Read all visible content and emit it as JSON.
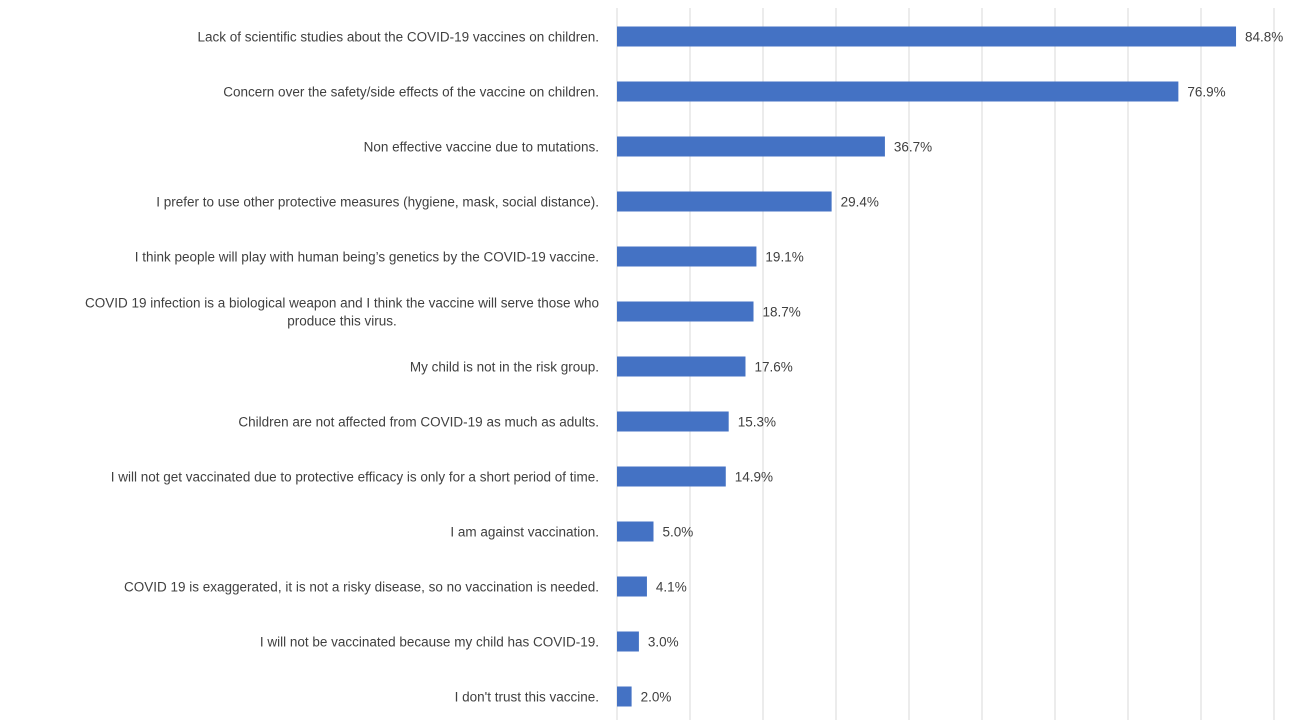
{
  "chart_data": {
    "type": "bar",
    "orientation": "horizontal",
    "categories": [
      [
        "Lack of scientific studies about the COVID-19 vaccines on children."
      ],
      [
        "Concern over the safety/side effects of the vaccine on children."
      ],
      [
        "Non effective vaccine due to mutations."
      ],
      [
        "I prefer to use other protective measures (hygiene, mask, social distance)."
      ],
      [
        "I think people will play with human being’s genetics by the COVID-19 vaccine."
      ],
      [
        "COVID 19 infection is a biological weapon and I think the vaccine will serve those who",
        "produce this virus."
      ],
      [
        "My child is not in the risk group."
      ],
      [
        "Children are not affected from COVID-19 as much as adults."
      ],
      [
        "I will not get vaccinated due to protective efficacy is only for a short period of time."
      ],
      [
        "I am  against vaccination."
      ],
      [
        "COVID 19 is exaggerated, it is not a risky disease, so no vaccination is needed."
      ],
      [
        "I will not be vaccinated because my child has COVID-19."
      ],
      [
        "I don't trust this vaccine."
      ]
    ],
    "values": [
      84.8,
      76.9,
      36.7,
      29.4,
      19.1,
      18.7,
      17.6,
      15.3,
      14.9,
      5.0,
      4.1,
      3.0,
      2.0
    ],
    "data_labels": [
      "84.8%",
      "76.9%",
      "36.7%",
      "29.4%",
      "19.1%",
      "18.7%",
      "17.6%",
      "15.3%",
      "14.9%",
      "5.0%",
      "4.1%",
      "3.0%",
      "2.0%"
    ],
    "xlim": [
      0,
      90
    ],
    "grid_step": 10,
    "grid": true,
    "title": "",
    "xlabel": "",
    "ylabel": "",
    "bar_color": "#4472C4",
    "grid_color": "#d9d9d9",
    "text_color": "#404040"
  }
}
